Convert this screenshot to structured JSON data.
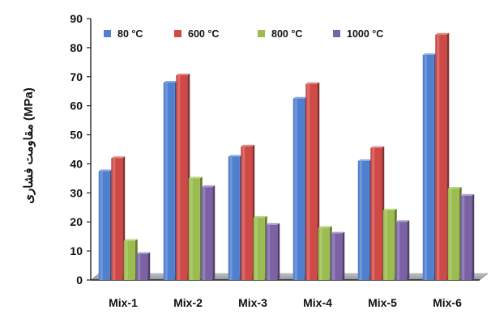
{
  "chart_data": {
    "type": "bar",
    "categories": [
      "Mix-1",
      "Mix-2",
      "Mix-3",
      "Mix-4",
      "Mix-5",
      "Mix-6"
    ],
    "series": [
      {
        "name": "80 °C",
        "color": "#4f7fcf",
        "values": [
          37.5,
          68,
          42.5,
          62.5,
          41,
          77.5
        ]
      },
      {
        "name": "600 °C",
        "color": "#cf4a47",
        "values": [
          42,
          70.5,
          46,
          67.5,
          45.5,
          84.5
        ]
      },
      {
        "name": "800 °C",
        "color": "#9bbd4f",
        "values": [
          13.5,
          35,
          21.5,
          18,
          24,
          31.5
        ]
      },
      {
        "name": "1000 °C",
        "color": "#7a62a5",
        "values": [
          9,
          32,
          19,
          16,
          20,
          29
        ]
      }
    ],
    "ylabel": "مقاومت فشاری  (MPa)",
    "ylim": [
      0,
      90
    ],
    "yticks": [
      0,
      10,
      20,
      30,
      40,
      50,
      60,
      70,
      80,
      90
    ],
    "legend_position": "top",
    "grid": false
  }
}
